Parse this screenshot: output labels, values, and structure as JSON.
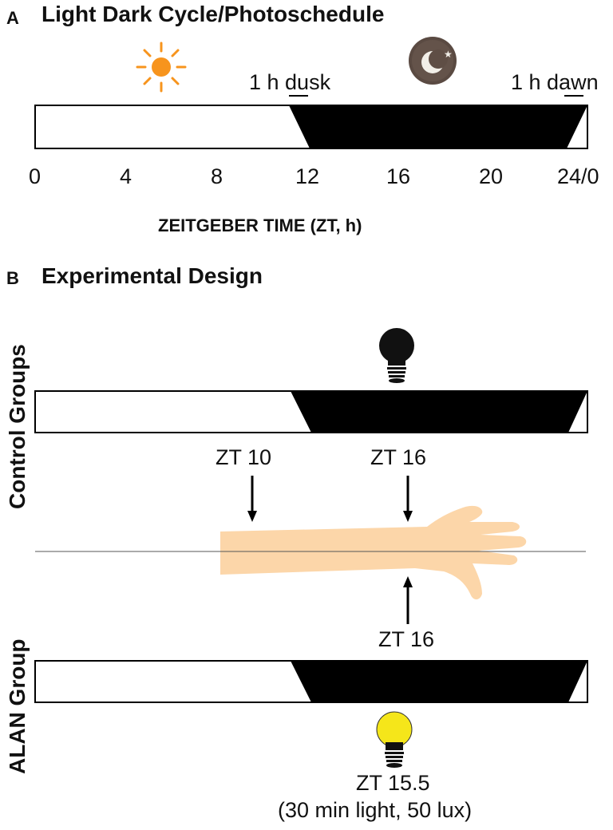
{
  "panel_a": {
    "letter": "A",
    "title": "Light Dark Cycle/Photoschedule",
    "dusk_label": "1 h dusk",
    "dawn_label": "1 h dawn",
    "ticks": [
      "0",
      "4",
      "8",
      "12",
      "16",
      "20",
      "24/0"
    ],
    "axis_title": "ZEITGEBER TIME (ZT, h)"
  },
  "panel_b": {
    "letter": "B",
    "title": "Experimental Design",
    "control_label": "Control Groups",
    "alan_label": "ALAN Group",
    "control_zt10": "ZT 10",
    "control_zt16": "ZT 16",
    "alan_zt16": "ZT 16",
    "alan_light_time": "ZT 15.5",
    "alan_light_desc": "(30 min light, 50 lux)"
  },
  "colors": {
    "dark": "#000000",
    "sun": "#f7941d",
    "arm": "#fcd6a9",
    "bulb_on": "#f5e61a",
    "bulb_off": "#111111"
  },
  "icons": [
    "sun-icon",
    "moon-icon",
    "lightbulb-off-icon",
    "lightbulb-on-icon",
    "arm-illustration"
  ]
}
